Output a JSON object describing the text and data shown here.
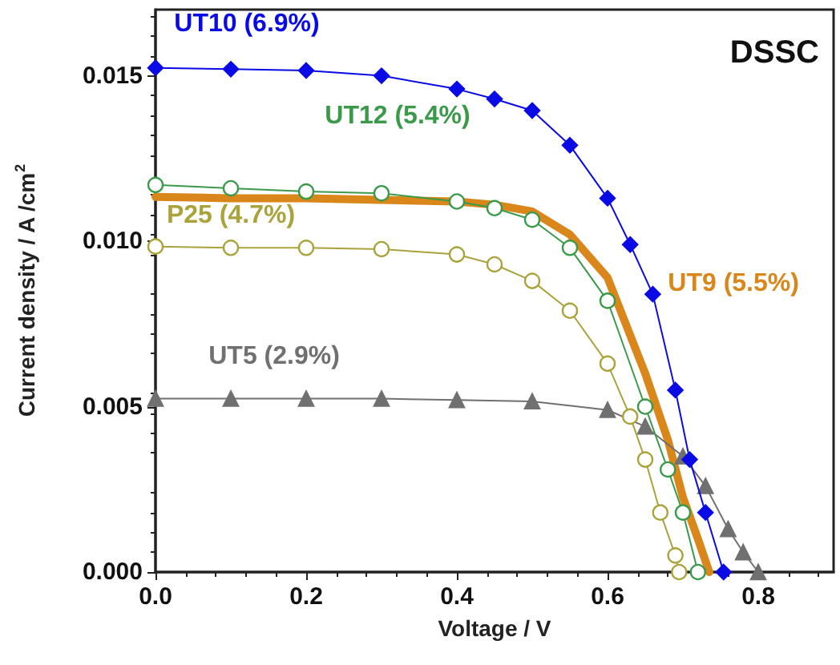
{
  "chart_data": {
    "type": "line",
    "title": "DSSC",
    "xlabel": "Voltage / V",
    "ylabel": "Current density / A /cm$^{2}$",
    "xlim": [
      0,
      0.9
    ],
    "xticks": [
      {
        "value": 0,
        "label": "0.0"
      },
      0.2,
      0.4,
      0.6,
      0.8
    ],
    "ylim": [
      0,
      0.017
    ],
    "yticks": [
      {
        "value": 0,
        "label": "0.000"
      },
      0.005,
      {
        "value": 0.01,
        "label": "0.010"
      },
      0.015
    ],
    "grid": false,
    "legend": false,
    "line_style": "solid",
    "series": [
      {
        "name": "UT10 (6.9%)",
        "color": "#0a0ae6",
        "marker": "diamond",
        "x": [
          0,
          0.1,
          0.2,
          0.3,
          0.4,
          0.45,
          0.5,
          0.55,
          0.6,
          0.63,
          0.66,
          0.69,
          0.709,
          0.73,
          0.754
        ],
        "values": [
          0.01524,
          0.0152,
          0.01516,
          0.015,
          0.0146,
          0.0143,
          0.01395,
          0.0129,
          0.0113,
          0.0099,
          0.0084,
          0.0055,
          0.0034,
          0.0018,
          0
        ]
      },
      {
        "name": "UT9 (5.5%)",
        "color": "#d9861a",
        "marker": "none",
        "x": [
          0,
          0.1,
          0.2,
          0.3,
          0.4,
          0.45,
          0.5,
          0.55,
          0.6,
          0.65,
          0.68,
          0.7,
          0.72,
          0.735
        ],
        "values": [
          0.01134,
          0.0113,
          0.0113,
          0.01125,
          0.0112,
          0.0111,
          0.0109,
          0.0102,
          0.0089,
          0.006,
          0.004,
          0.00226,
          0.001,
          0
        ]
      },
      {
        "name": "UT12 (5.4%)",
        "color": "#3a9a4a",
        "marker": "circle",
        "x": [
          0,
          0.1,
          0.2,
          0.3,
          0.4,
          0.45,
          0.5,
          0.55,
          0.6,
          0.65,
          0.68,
          0.7,
          0.72
        ],
        "values": [
          0.0117,
          0.0116,
          0.0115,
          0.01145,
          0.0112,
          0.011,
          0.01065,
          0.0098,
          0.0082,
          0.005,
          0.0031,
          0.0018,
          0
        ]
      },
      {
        "name": "P25 (4.7%)",
        "color": "#aaa33c",
        "marker": "circle",
        "x": [
          0,
          0.1,
          0.2,
          0.3,
          0.4,
          0.45,
          0.5,
          0.55,
          0.6,
          0.63,
          0.65,
          0.67,
          0.69,
          0.695
        ],
        "values": [
          0.00984,
          0.0098,
          0.0098,
          0.00976,
          0.0096,
          0.0093,
          0.0088,
          0.0079,
          0.0063,
          0.0047,
          0.0034,
          0.0018,
          0.0005,
          0
        ]
      },
      {
        "name": "UT5 (2.9%)",
        "color": "#707070",
        "marker": "triangle",
        "x": [
          0,
          0.1,
          0.2,
          0.3,
          0.4,
          0.5,
          0.6,
          0.65,
          0.7,
          0.73,
          0.76,
          0.78,
          0.8
        ],
        "values": [
          0.00524,
          0.00524,
          0.00524,
          0.00524,
          0.0052,
          0.00516,
          0.0049,
          0.0044,
          0.0035,
          0.0026,
          0.0013,
          0.0006,
          0
        ]
      }
    ]
  }
}
